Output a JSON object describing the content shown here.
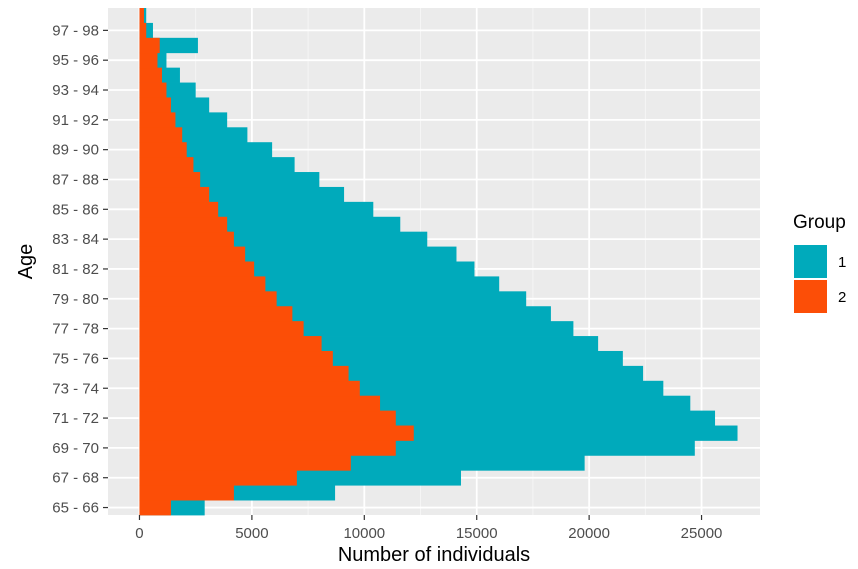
{
  "chart_data": {
    "type": "bar",
    "orientation": "horizontal",
    "stacking": "overlay",
    "xlabel": "Number of individuals",
    "ylabel": "Age",
    "xlim": [
      -1400,
      27600
    ],
    "x_ticks": [
      0,
      5000,
      10000,
      15000,
      20000,
      25000
    ],
    "y_tick_labels": [
      "65 - 66",
      "67 - 68",
      "69 - 70",
      "71 - 72",
      "73 - 74",
      "75 - 76",
      "77 - 78",
      "79 - 80",
      "81 - 82",
      "83 - 84",
      "85 - 86",
      "87 - 88",
      "89 - 90",
      "91 - 92",
      "93 - 94",
      "95 - 96",
      "97 - 98"
    ],
    "categories": [
      65,
      66,
      67,
      68,
      69,
      70,
      71,
      72,
      73,
      74,
      75,
      76,
      77,
      78,
      79,
      80,
      81,
      82,
      83,
      84,
      85,
      86,
      87,
      88,
      89,
      90,
      91,
      92,
      93,
      94,
      95,
      96,
      97,
      98
    ],
    "grid": true,
    "legend": {
      "title": "Group",
      "position": "right"
    },
    "series": [
      {
        "name": "1",
        "color": "#00AABB",
        "values": [
          2900,
          8700,
          14300,
          19800,
          24700,
          26600,
          25600,
          24500,
          23300,
          22400,
          21500,
          20400,
          19300,
          18300,
          17200,
          16000,
          14900,
          14100,
          12800,
          11600,
          10400,
          9100,
          8000,
          6900,
          5900,
          4800,
          3900,
          3100,
          2500,
          1800,
          1200,
          2600,
          600,
          300
        ]
      },
      {
        "name": "2",
        "color": "#FC4E07",
        "values": [
          1400,
          4200,
          7000,
          9400,
          11400,
          12200,
          11400,
          10700,
          9800,
          9300,
          8600,
          8100,
          7300,
          6800,
          6100,
          5600,
          5100,
          4700,
          4200,
          3900,
          3500,
          3100,
          2700,
          2400,
          2100,
          1900,
          1600,
          1400,
          1200,
          1000,
          800,
          900,
          300,
          200
        ]
      }
    ]
  }
}
